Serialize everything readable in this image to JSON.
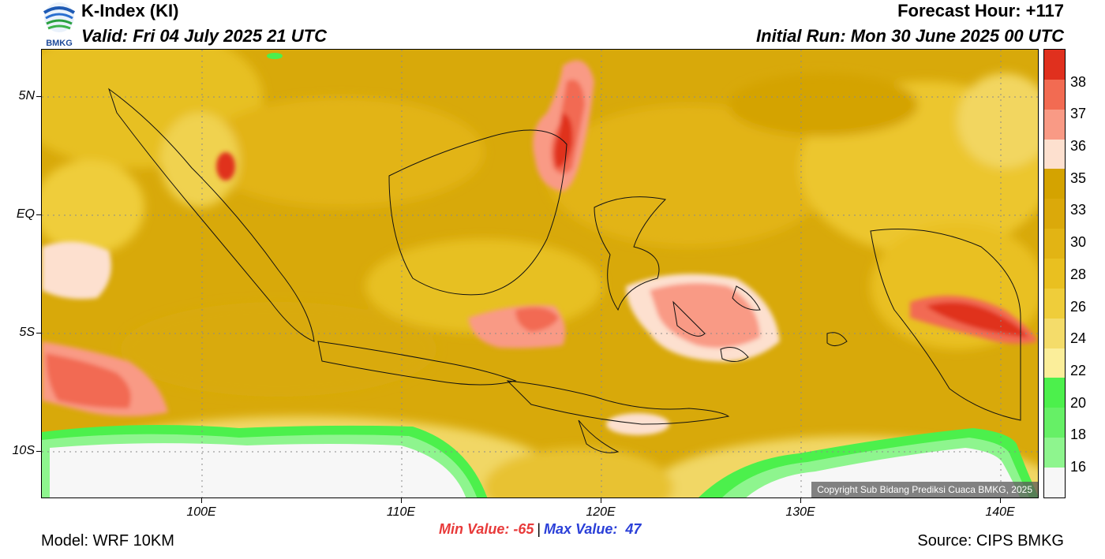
{
  "header": {
    "title": "K-Index (KI)",
    "valid": "Valid: Fri 04 July 2025 21 UTC",
    "forecast_hour": "Forecast Hour: +117",
    "initial_run": "Initial Run: Mon 30 June 2025 00 UTC"
  },
  "logo": {
    "text": "BMKG"
  },
  "map": {
    "lat_labels": [
      "5N",
      "EQ",
      "5S",
      "10S"
    ],
    "lon_labels": [
      "100E",
      "110E",
      "120E",
      "130E",
      "140E"
    ],
    "copyright": "Copyright Sub Bidang Prediksi Cuaca BMKG, 2025"
  },
  "colorbar": {
    "labels": [
      "38",
      "37",
      "36",
      "35",
      "33",
      "30",
      "28",
      "26",
      "24",
      "22",
      "20",
      "18",
      "16"
    ],
    "colors": [
      "#e0301e",
      "#f26b52",
      "#f99a85",
      "#fde0cf",
      "#d4a300",
      "#dba90a",
      "#e2b414",
      "#e9c020",
      "#efcd3a",
      "#f4dc6a",
      "#fbee9a",
      "#4cf04c",
      "#66f066",
      "#8ef58e",
      "#f7f7f7"
    ]
  },
  "stats": {
    "min_label": "Min Value: -65",
    "separator": "|",
    "max_label": "Max Value:  47"
  },
  "footer": {
    "model": "Model: WRF 10KM",
    "source": "Source: CIPS BMKG"
  }
}
